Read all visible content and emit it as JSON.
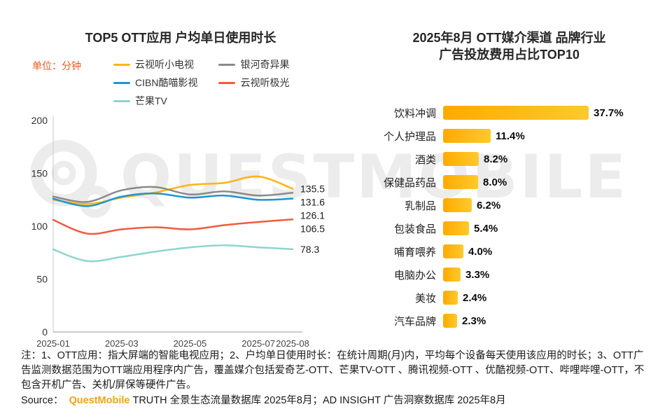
{
  "watermark": {
    "text": "QUESTMOBILE"
  },
  "left_chart": {
    "title": "TOP5 OTT应用 户均单日使用时长",
    "unit_label": "单位：分钟"
  },
  "right_chart": {
    "title_line1": "2025年8月 OTT媒介渠道 品牌行业",
    "title_line2": "广告投放费用占比TOP10"
  },
  "chart_data": [
    {
      "type": "line",
      "title": "TOP5 OTT应用 户均单日使用时长",
      "unit": "单位：分钟",
      "x": [
        "2025-01",
        "2025-02",
        "2025-03",
        "2025-04",
        "2025-05",
        "2025-06",
        "2025-07",
        "2025-08"
      ],
      "x_tick_labels": [
        "2025-01",
        "2025-03",
        "2025-05",
        "2025-07",
        "2025-08"
      ],
      "x_tick_index": [
        0,
        2,
        4,
        6,
        7
      ],
      "ylim": [
        0,
        200
      ],
      "y_ticks": [
        0,
        50,
        100,
        150,
        200
      ],
      "grid": false,
      "legend_position": "top",
      "series": [
        {
          "name": "云视听小电视",
          "color": "#FFB411",
          "values": [
            125,
            121,
            127,
            132,
            139,
            141,
            147,
            135.5
          ],
          "end_label": "135.5"
        },
        {
          "name": "银河奇异果",
          "color": "#8A8A8A",
          "values": [
            128,
            123,
            134,
            137,
            130,
            133,
            129,
            131.6
          ],
          "end_label": "131.6"
        },
        {
          "name": "CIBN酷喵影视",
          "color": "#1E95D2",
          "values": [
            126,
            119,
            128,
            131,
            127,
            129,
            125,
            126.1
          ],
          "end_label": "126.1"
        },
        {
          "name": "云视听极光",
          "color": "#F05B3F",
          "values": [
            106,
            93,
            97,
            99,
            97,
            101,
            104,
            106.5
          ],
          "end_label": "106.5"
        },
        {
          "name": "芒果TV",
          "color": "#8BD6CE",
          "values": [
            78,
            67,
            71,
            76,
            80,
            82,
            80,
            78.3
          ],
          "end_label": "78.3"
        }
      ]
    },
    {
      "type": "bar",
      "orientation": "horizontal",
      "title": "2025年8月 OTT媒介渠道 品牌行业广告投放费用占比TOP10",
      "categories": [
        "饮料冲调",
        "个人护理品",
        "酒类",
        "保健品药品",
        "乳制品",
        "包装食品",
        "哺育喂养",
        "电脑办公",
        "美妆",
        "汽车品牌"
      ],
      "values": [
        37.7,
        11.4,
        8.2,
        8.0,
        6.2,
        5.4,
        4.0,
        3.3,
        2.4,
        2.3
      ],
      "value_labels": [
        "37.7%",
        "11.4%",
        "8.2%",
        "8.0%",
        "6.2%",
        "5.4%",
        "4.0%",
        "3.3%",
        "2.4%",
        "2.3%"
      ],
      "bar_color_start": "#FFAA00",
      "bar_color_end": "#FFC92C"
    }
  ],
  "notes": {
    "text": "注：1、OTT应用：指大屏端的智能电视应用；2、户均单日使用时长：在统计周期(月)内，平均每个设备每天使用该应用的时长；3、OTT广告监测数据范围为OTT端应用程序内广告，覆盖媒介包括爱奇艺-OTT、芒果TV-OTT 、腾讯视频-OTT 、优酷视频-OTT、哔哩哔哩-OTT，不包含开机广告、关机/屏保等硬件广告。"
  },
  "source": {
    "prefix": "Source：",
    "brand": "QuestMobile",
    "rest": "TRUTH 全景生态流量数据库 2025年8月；AD INSIGHT 广告洞察数据库 2025年8月"
  }
}
